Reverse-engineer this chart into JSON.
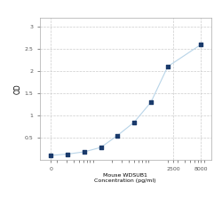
{
  "x": [
    15.625,
    31.25,
    62.5,
    125,
    250,
    500,
    1000,
    2000,
    8000
  ],
  "y": [
    0.1,
    0.13,
    0.18,
    0.28,
    0.55,
    0.85,
    1.3,
    2.1,
    2.6
  ],
  "line_color": "#b8d4e8",
  "marker_color": "#1a3a6b",
  "marker_size": 3.5,
  "xlabel_line1": "Mouse WDSUB1",
  "xlabel_line2": "Concentration (pg/ml)",
  "xlabel_tick": "2500",
  "ylabel": "OD",
  "yticks": [
    0.5,
    1.0,
    1.5,
    2.0,
    2.5,
    3.0
  ],
  "ytick_labels": [
    "0.5",
    "1",
    "1.5",
    "2",
    "2.5",
    "3"
  ],
  "xlim_log": [
    10,
    12000
  ],
  "ylim": [
    0.0,
    3.2
  ],
  "grid_color": "#cccccc",
  "plot_bg": "#ffffff",
  "fig_bg": "#ffffff",
  "spine_color": "#aaaaaa",
  "tick_color": "#555555"
}
